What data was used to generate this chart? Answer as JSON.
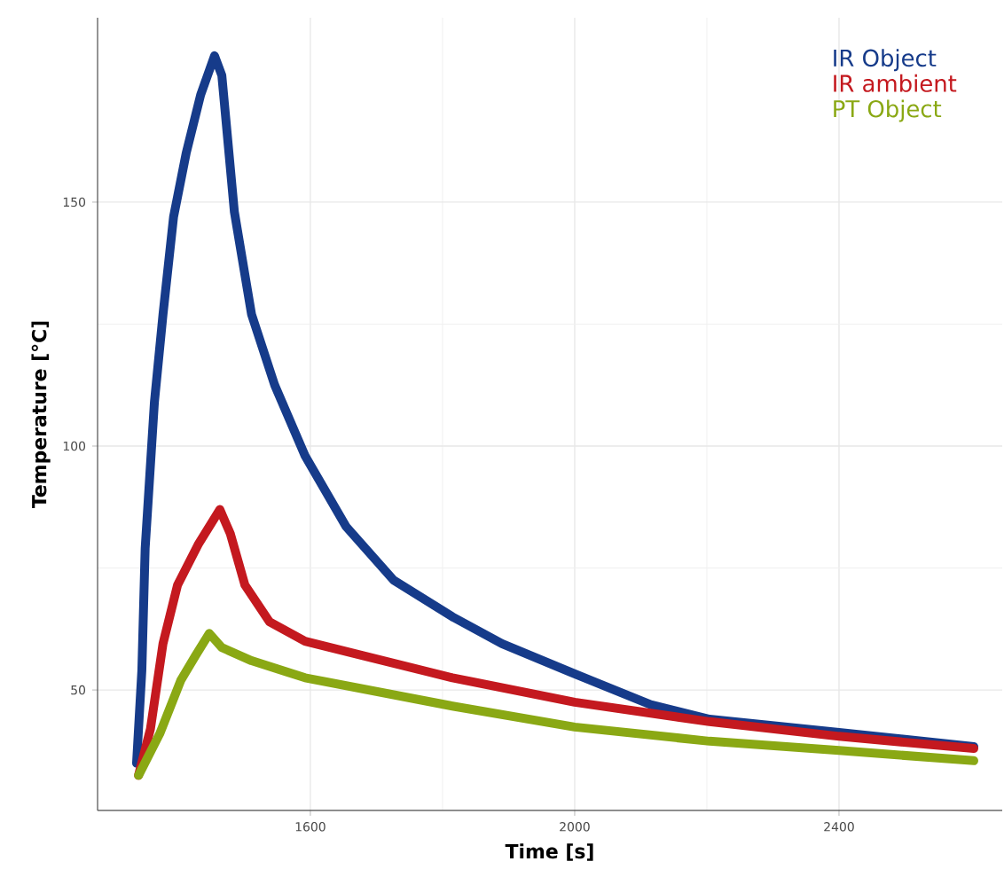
{
  "chart_data": {
    "type": "line",
    "xlabel": "Time [s]",
    "ylabel": "Temperature [°C]",
    "xlim": [
      1278,
      2647
    ],
    "ylim": [
      25.3,
      187.8
    ],
    "xticks": [
      1600,
      2000,
      2400
    ],
    "yticks": [
      50,
      100,
      150
    ],
    "grid": true,
    "legend": "top right",
    "line_style": "solid",
    "series": [
      {
        "name": "IR Object",
        "color": "#163b8a",
        "x": [
          1337,
          1345,
          1350,
          1364,
          1377,
          1393,
          1412,
          1434,
          1455,
          1466,
          1485,
          1511,
          1546,
          1592,
          1654,
          1726,
          1815,
          1890,
          2000,
          2115,
          2204,
          2400,
          2604
        ],
        "values": [
          35,
          54,
          79,
          109,
          127,
          147,
          160,
          172,
          180,
          176,
          148,
          127,
          112.5,
          98,
          83.5,
          72.5,
          65,
          59.5,
          53.3,
          47,
          44,
          41.3,
          38.4
        ]
      },
      {
        "name": "IR ambient",
        "color": "#c4191f",
        "x": [
          1340,
          1358,
          1377,
          1399,
          1431,
          1463,
          1479,
          1501,
          1538,
          1592,
          1681,
          1815,
          2000,
          2204,
          2400,
          2604
        ],
        "values": [
          32.5,
          42,
          59.5,
          71.5,
          80,
          87,
          82,
          71.5,
          64,
          60,
          57,
          52.5,
          47.5,
          43.5,
          40.5,
          38
        ]
      },
      {
        "name": "PT Object",
        "color": "#8aa814",
        "x": [
          1340,
          1372,
          1404,
          1426,
          1447,
          1466,
          1511,
          1592,
          1815,
          2000,
          2204,
          2400,
          2604
        ],
        "values": [
          32.5,
          41,
          52,
          57,
          61.6,
          58.7,
          56,
          52.5,
          46.7,
          42.4,
          39.5,
          37.6,
          35.5
        ]
      }
    ]
  }
}
